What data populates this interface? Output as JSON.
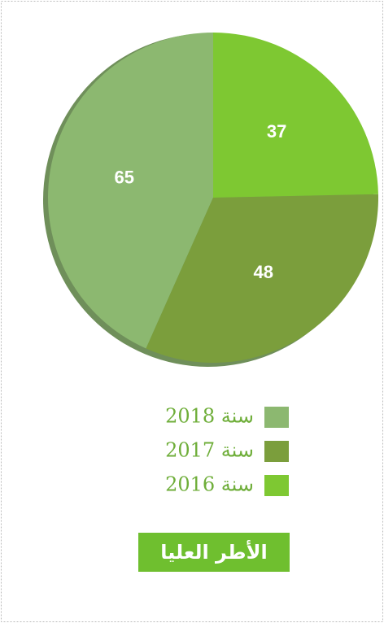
{
  "chart_data": {
    "type": "pie",
    "title": "الأطر العليا",
    "categories": [
      "سنة 2018",
      "سنة 2017",
      "سنة 2016"
    ],
    "values": [
      65,
      48,
      37
    ],
    "colors": [
      "#8cb870",
      "#7b9e3c",
      "#7ec832"
    ]
  }
}
